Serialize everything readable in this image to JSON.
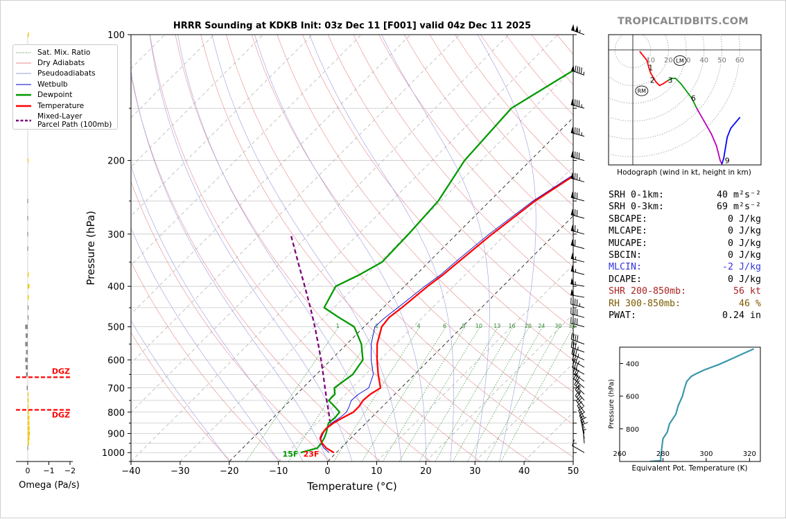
{
  "title": "HRRR Sounding at KDKB Init: 03z Dec 11 [F001] valid 04z Dec 11 2025",
  "brand": "TROPICALTIDBITS.COM",
  "legend": [
    {
      "label": "Sat. Mix. Ratio",
      "color": "#2e8b2e",
      "style": "dotted"
    },
    {
      "label": "Dry Adiabats",
      "color": "#e58a8a",
      "style": "solid"
    },
    {
      "label": "Pseudoadiabats",
      "color": "#9a9ae0",
      "style": "solid"
    },
    {
      "label": "Wetbulb",
      "color": "#0000cc",
      "style": "solid"
    },
    {
      "label": "Dewpoint",
      "color": "#009900",
      "style": "solid"
    },
    {
      "label": "Temperature",
      "color": "#ff0000",
      "style": "solid"
    },
    {
      "label": "Mixed-Layer",
      "label2": "Parcel Path (100mb)",
      "color": "#7b007b",
      "style": "dashed"
    }
  ],
  "colors": {
    "temperature": "#ff0000",
    "dewpoint": "#009900",
    "wetbulb": "#0000cc",
    "parcel": "#7b007b",
    "hodo_blue": "#0000ff",
    "hodo_magenta": "#bb00bb",
    "eqpt": "#3a96ad"
  },
  "chart_data": [
    {
      "type": "line",
      "name": "skewt",
      "xlabel": "Temperature (°C)",
      "ylabel": "Pressure (hPa)",
      "xlim": [
        -40,
        50
      ],
      "ylim": [
        1050,
        100
      ],
      "yscale": "log",
      "xticks": [
        -40,
        -30,
        -20,
        -10,
        0,
        10,
        20,
        30,
        40,
        50
      ],
      "xtick_labels": [
        "−40",
        "−30",
        "−20",
        "−10",
        "0",
        "10",
        "20",
        "30",
        "40",
        "50"
      ],
      "yticks": [
        100,
        200,
        300,
        400,
        500,
        600,
        700,
        800,
        900,
        1000
      ],
      "mixing_ratio_labels": [
        "1",
        "2",
        "4",
        "6",
        "8",
        "10",
        "13",
        "16",
        "20",
        "24",
        "30",
        "36"
      ],
      "mixing_ratio_values": [
        1,
        2,
        4,
        6,
        8,
        10,
        13,
        16,
        20,
        24,
        30,
        36
      ],
      "surface_labels": {
        "dewpoint": "15F",
        "temperature": "23F"
      },
      "series": [
        {
          "name": "Temperature",
          "p": [
            1000,
            975,
            950,
            925,
            900,
            875,
            850,
            825,
            800,
            775,
            750,
            725,
            700,
            650,
            600,
            550,
            500,
            475,
            450,
            400,
            375,
            350,
            300,
            250,
            200,
            175,
            150,
            125,
            100
          ],
          "t": [
            -0.5,
            -3.0,
            -4.8,
            -6.2,
            -6.8,
            -7.0,
            -6.6,
            -5.8,
            -4.8,
            -4.8,
            -5.2,
            -5.0,
            -4.2,
            -7.4,
            -10.6,
            -13.8,
            -16.4,
            -16.8,
            -16.2,
            -15.3,
            -14.5,
            -14.0,
            -12.8,
            -10.8,
            -6.4,
            -4.3,
            -2.2,
            1.5,
            6.8
          ]
        },
        {
          "name": "Dewpoint",
          "p": [
            1000,
            975,
            950,
            925,
            900,
            875,
            850,
            825,
            800,
            775,
            750,
            725,
            700,
            650,
            600,
            550,
            500,
            475,
            450,
            400,
            375,
            350,
            300,
            250,
            200,
            150,
            100
          ],
          "t": [
            -7.3,
            -4.8,
            -5.0,
            -5.4,
            -6.0,
            -6.8,
            -7.6,
            -7.4,
            -7.6,
            -9.8,
            -12.2,
            -12.2,
            -13.6,
            -12.6,
            -13.5,
            -17.0,
            -22.0,
            -27.0,
            -32.0,
            -34.0,
            -31.5,
            -29.5,
            -29.8,
            -30.5,
            -33.4,
            -34.5,
            -25.0
          ]
        },
        {
          "name": "Wetbulb",
          "p": [
            1000,
            975,
            950,
            925,
            900,
            875,
            850,
            825,
            800,
            775,
            750,
            725,
            700,
            650,
            600,
            550,
            500,
            475,
            450,
            400,
            375,
            350,
            300,
            250,
            200,
            150,
            100
          ],
          "t": [
            -1.5,
            -3.5,
            -5.0,
            -6.0,
            -6.6,
            -7.0,
            -7.0,
            -6.4,
            -6.2,
            -6.8,
            -7.6,
            -7.4,
            -6.6,
            -8.4,
            -11.8,
            -15.0,
            -17.8,
            -17.6,
            -17.0,
            -15.9,
            -15.0,
            -14.6,
            -13.4,
            -11.2,
            -6.8,
            -2.6,
            6.2
          ]
        },
        {
          "name": "Mixed-Layer Parcel Path (100mb)",
          "p": [
            850,
            800,
            750,
            700,
            650,
            600,
            550,
            500,
            450,
            400,
            350,
            300
          ],
          "t": [
            -7.3,
            -9.8,
            -12.6,
            -15.5,
            -18.6,
            -22.0,
            -25.8,
            -30.0,
            -34.8,
            -40.3,
            -46.6,
            -53.8
          ]
        }
      ]
    },
    {
      "type": "bar",
      "name": "omega",
      "xlabel": "Omega (Pa/s)",
      "xlim": [
        0.2,
        -2.2
      ],
      "xticks": [
        0,
        -1,
        -2
      ],
      "xtick_labels": [
        "0",
        "−1",
        "−2"
      ],
      "dgz_label": "DGZ",
      "dgz_pressures": [
        660,
        790
      ],
      "p": [
        100,
        200,
        250,
        275,
        300,
        325,
        375,
        400,
        425,
        450,
        475,
        500,
        525,
        550,
        575,
        600,
        625,
        650,
        700,
        725,
        750,
        775,
        800,
        825,
        850,
        875,
        900,
        925,
        950,
        975
      ],
      "values": [
        -0.05,
        -0.02,
        0.02,
        0.02,
        0.02,
        0.02,
        -0.05,
        -0.08,
        -0.05,
        0.0,
        0.0,
        0.12,
        0.1,
        0.12,
        0.08,
        0.12,
        0.1,
        0.08,
        0.05,
        -0.03,
        -0.05,
        -0.04,
        -0.06,
        -0.08,
        -0.08,
        -0.09,
        -0.1,
        -0.08,
        -0.06,
        0.02
      ]
    },
    {
      "type": "line",
      "name": "hodograph",
      "caption": "Hodograph (wind in kt, height in km)",
      "ring_labels": [
        "10",
        "20",
        "30",
        "40",
        "50",
        "60"
      ],
      "ring_values": [
        10,
        20,
        30,
        40,
        50,
        60
      ],
      "height_labels": [
        "1",
        "2",
        "3",
        "6",
        "9"
      ],
      "height_points": [
        [
          10,
          -10
        ],
        [
          11,
          -17
        ],
        [
          21,
          -17
        ],
        [
          34,
          -27
        ],
        [
          53,
          -62
        ]
      ],
      "markers": [
        {
          "label": "LM",
          "u": 26.5,
          "v": -6
        },
        {
          "label": "RM",
          "u": 5,
          "v": -23
        }
      ],
      "u": [
        4,
        8,
        9,
        10,
        13,
        15,
        17,
        20,
        22,
        24,
        27,
        30,
        33,
        36,
        40,
        44,
        47,
        49,
        50,
        51,
        53,
        55,
        60
      ],
      "v": [
        -1,
        -6,
        -10,
        -13,
        -18,
        -20,
        -19,
        -17,
        -16,
        -16,
        -19,
        -23,
        -27,
        -33,
        -40,
        -47,
        -54,
        -62,
        -64,
        -61,
        -49,
        -44,
        -38
      ],
      "segment_colors": [
        "#ff0000",
        "#ff0000",
        "#ff0000",
        "#ff0000",
        "#ff0000",
        "#ff0000",
        "#ff0000",
        "#009900",
        "#009900",
        "#009900",
        "#009900",
        "#009900",
        "#009900",
        "#bb00bb",
        "#bb00bb",
        "#bb00bb",
        "#bb00bb",
        "#bb00bb",
        "#0000ff",
        "#0000ff",
        "#0000ff",
        "#0000ff"
      ]
    },
    {
      "type": "line",
      "name": "equivalent-potential-temperature",
      "xlabel": "Equivalent Pot. Temperature (K)",
      "ylabel": "Pressure (hPa)",
      "xlim": [
        260,
        325
      ],
      "ylim": [
        1000,
        300
      ],
      "xticks": [
        260,
        280,
        300,
        320
      ],
      "yticks": [
        400,
        600,
        800
      ],
      "x": [
        274,
        279,
        279,
        280,
        282,
        283,
        285,
        286,
        287,
        289,
        290,
        291,
        293,
        295,
        299,
        306,
        312,
        317,
        322
      ],
      "y": [
        1000,
        995,
        970,
        860,
        820,
        770,
        730,
        710,
        660,
        600,
        550,
        510,
        480,
        465,
        440,
        405,
        370,
        340,
        310
      ]
    }
  ],
  "stats": [
    {
      "label": "SRH 0-1km:",
      "value": "40 m²s⁻²",
      "color": "#000000"
    },
    {
      "label": "SRH 0-3km:",
      "value": "69 m²s⁻²",
      "color": "#000000"
    },
    {
      "label": "SBCAPE:",
      "value": "0 J/kg",
      "color": "#000000"
    },
    {
      "label": "MLCAPE:",
      "value": "0 J/kg",
      "color": "#000000"
    },
    {
      "label": "MUCAPE:",
      "value": "0 J/kg",
      "color": "#000000"
    },
    {
      "label": "SBCIN:",
      "value": "0 J/kg",
      "color": "#000000"
    },
    {
      "label": "MLCIN:",
      "value": "-2 J/kg",
      "color": "#3333dd"
    },
    {
      "label": "DCAPE:",
      "value": "0 J/kg",
      "color": "#000000"
    },
    {
      "label": "SHR 200-850mb:",
      "value": "56 kt",
      "color": "#aa2222"
    },
    {
      "label": "RH 300-850mb:",
      "value": "46 %",
      "color": "#7a5a00"
    },
    {
      "label": "PWAT:",
      "value": "0.24 in",
      "color": "#000000"
    }
  ],
  "wind_barbs": [
    {
      "p": 100,
      "speed": 105,
      "dir": 290
    },
    {
      "p": 125,
      "speed": 95,
      "dir": 290
    },
    {
      "p": 150,
      "speed": 85,
      "dir": 285
    },
    {
      "p": 175,
      "speed": 85,
      "dir": 285
    },
    {
      "p": 200,
      "speed": 80,
      "dir": 285
    },
    {
      "p": 225,
      "speed": 75,
      "dir": 285
    },
    {
      "p": 250,
      "speed": 70,
      "dir": 285
    },
    {
      "p": 275,
      "speed": 70,
      "dir": 285
    },
    {
      "p": 300,
      "speed": 65,
      "dir": 285
    },
    {
      "p": 325,
      "speed": 60,
      "dir": 285
    },
    {
      "p": 350,
      "speed": 55,
      "dir": 285
    },
    {
      "p": 375,
      "speed": 55,
      "dir": 285
    },
    {
      "p": 400,
      "speed": 55,
      "dir": 280
    },
    {
      "p": 425,
      "speed": 50,
      "dir": 280
    },
    {
      "p": 450,
      "speed": 45,
      "dir": 285
    },
    {
      "p": 475,
      "speed": 40,
      "dir": 285
    },
    {
      "p": 500,
      "speed": 40,
      "dir": 285
    },
    {
      "p": 550,
      "speed": 40,
      "dir": 290
    },
    {
      "p": 575,
      "speed": 35,
      "dir": 290
    },
    {
      "p": 600,
      "speed": 35,
      "dir": 295
    },
    {
      "p": 625,
      "speed": 35,
      "dir": 300
    },
    {
      "p": 650,
      "speed": 30,
      "dir": 300
    },
    {
      "p": 675,
      "speed": 30,
      "dir": 305
    },
    {
      "p": 700,
      "speed": 30,
      "dir": 310
    },
    {
      "p": 725,
      "speed": 25,
      "dir": 315
    },
    {
      "p": 750,
      "speed": 25,
      "dir": 320
    },
    {
      "p": 775,
      "speed": 20,
      "dir": 320
    },
    {
      "p": 800,
      "speed": 20,
      "dir": 325
    },
    {
      "p": 825,
      "speed": 15,
      "dir": 330
    },
    {
      "p": 850,
      "speed": 15,
      "dir": 335
    },
    {
      "p": 875,
      "speed": 15,
      "dir": 340
    },
    {
      "p": 900,
      "speed": 15,
      "dir": 345
    },
    {
      "p": 925,
      "speed": 10,
      "dir": 350
    },
    {
      "p": 950,
      "speed": 5,
      "dir": 355
    },
    {
      "p": 1000,
      "speed": 10,
      "dir": 300
    }
  ]
}
